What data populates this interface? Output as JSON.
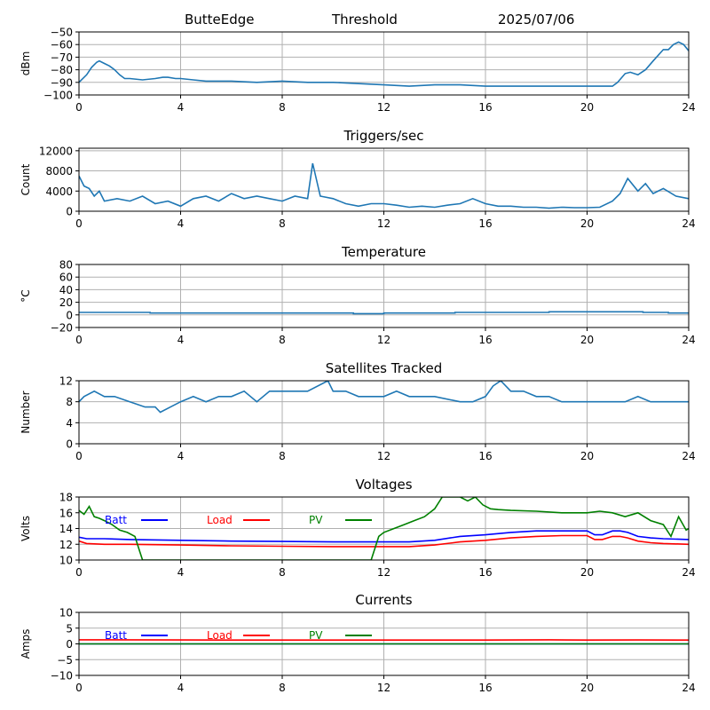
{
  "header": {
    "site": "ButteEdge",
    "label": "Threshold",
    "date": "2025/07/06"
  },
  "colors": {
    "series_default": "#1f77b4",
    "batt": "#0000ff",
    "load": "#ff0000",
    "pv": "#008000",
    "grid": "#b0b0b0",
    "axis": "#000000"
  },
  "chart_data": [
    {
      "id": "threshold",
      "type": "line",
      "title": "",
      "xlabel": "",
      "ylabel": "dBm",
      "xlim": [
        0,
        24
      ],
      "ylim": [
        -100,
        -50
      ],
      "xticks": [
        0,
        4,
        8,
        12,
        16,
        20,
        24
      ],
      "yticks": [
        -100,
        -90,
        -80,
        -70,
        -60,
        -50
      ],
      "grid": true,
      "series": [
        {
          "color": "#1f77b4",
          "x": [
            0,
            0.3,
            0.5,
            0.7,
            0.8,
            1.0,
            1.2,
            1.4,
            1.6,
            1.8,
            2.0,
            2.5,
            3.0,
            3.3,
            3.5,
            3.8,
            4.0,
            4.5,
            5.0,
            6.0,
            7.0,
            8.0,
            9.0,
            10.0,
            11.0,
            12.0,
            13.0,
            14.0,
            15.0,
            16.0,
            17.0,
            18.0,
            19.0,
            20.0,
            21.0,
            21.2,
            21.5,
            21.7,
            22.0,
            22.3,
            22.6,
            23.0,
            23.2,
            23.4,
            23.6,
            23.8,
            24.0
          ],
          "y": [
            -90,
            -84,
            -78,
            -74,
            -73,
            -75,
            -77,
            -80,
            -84,
            -87,
            -87,
            -88,
            -87,
            -86,
            -86,
            -87,
            -87,
            -88,
            -89,
            -89,
            -90,
            -89,
            -90,
            -90,
            -91,
            -92,
            -93,
            -92,
            -92,
            -93,
            -93,
            -93,
            -93,
            -93,
            -93,
            -90,
            -83,
            -82,
            -84,
            -80,
            -73,
            -64,
            -64,
            -60,
            -58,
            -60,
            -65
          ]
        }
      ]
    },
    {
      "id": "triggers",
      "type": "line",
      "title": "Triggers/sec",
      "xlabel": "",
      "ylabel": "Count",
      "xlim": [
        0,
        24
      ],
      "ylim": [
        0,
        12500
      ],
      "xticks": [
        0,
        4,
        8,
        12,
        16,
        20,
        24
      ],
      "yticks": [
        0,
        4000,
        8000,
        12000
      ],
      "grid": true,
      "series": [
        {
          "color": "#1f77b4",
          "x": [
            0,
            0.2,
            0.4,
            0.6,
            0.8,
            1.0,
            1.5,
            2.0,
            2.5,
            3.0,
            3.5,
            4.0,
            4.5,
            5.0,
            5.5,
            6.0,
            6.5,
            7.0,
            7.5,
            8.0,
            8.5,
            9.0,
            9.2,
            9.5,
            10.0,
            10.5,
            11.0,
            11.5,
            12.0,
            12.5,
            13.0,
            13.5,
            14.0,
            14.5,
            15.0,
            15.5,
            16.0,
            16.5,
            17.0,
            17.5,
            18.0,
            18.5,
            19.0,
            19.5,
            20.0,
            20.5,
            21.0,
            21.3,
            21.6,
            22.0,
            22.3,
            22.6,
            23.0,
            23.5,
            24.0
          ],
          "y": [
            7000,
            5000,
            4500,
            3000,
            4000,
            2000,
            2500,
            2000,
            3000,
            1500,
            2000,
            1000,
            2500,
            3000,
            2000,
            3500,
            2500,
            3000,
            2500,
            2000,
            3000,
            2500,
            9500,
            3000,
            2500,
            1500,
            1000,
            1500,
            1500,
            1200,
            800,
            1000,
            800,
            1200,
            1500,
            2500,
            1500,
            1000,
            1000,
            800,
            800,
            600,
            800,
            700,
            700,
            800,
            2000,
            3500,
            6500,
            4000,
            5500,
            3500,
            4500,
            3000,
            2500
          ]
        }
      ]
    },
    {
      "id": "temperature",
      "type": "line",
      "title": "Temperature",
      "xlabel": "",
      "ylabel": "°C",
      "xlim": [
        0,
        24
      ],
      "ylim": [
        -20,
        80
      ],
      "xticks": [
        0,
        4,
        8,
        12,
        16,
        20,
        24
      ],
      "yticks": [
        -20,
        0,
        20,
        40,
        60,
        80
      ],
      "grid": true,
      "series": [
        {
          "color": "#1f77b4",
          "x": [
            0,
            2.8,
            2.8,
            10.8,
            10.8,
            12.0,
            12.0,
            14.8,
            14.8,
            18.5,
            18.5,
            22.2,
            22.2,
            23.2,
            23.2,
            24
          ],
          "y": [
            4,
            4,
            3,
            3,
            2,
            2,
            3,
            3,
            4,
            4,
            5,
            5,
            4,
            4,
            3,
            3
          ]
        }
      ]
    },
    {
      "id": "satellites",
      "type": "line",
      "title": "Satellites Tracked",
      "xlabel": "",
      "ylabel": "Number",
      "xlim": [
        0,
        24
      ],
      "ylim": [
        0,
        12
      ],
      "xticks": [
        0,
        4,
        8,
        12,
        16,
        20,
        24
      ],
      "yticks": [
        0,
        4,
        8,
        12
      ],
      "grid": true,
      "series": [
        {
          "color": "#1f77b4",
          "x": [
            0,
            0.2,
            0.6,
            1.0,
            1.4,
            2.0,
            2.6,
            3.0,
            3.2,
            3.6,
            4.0,
            4.5,
            5.0,
            5.5,
            6.0,
            6.5,
            7.0,
            7.5,
            8.0,
            9.0,
            9.8,
            10.0,
            10.5,
            11.0,
            11.5,
            12.0,
            12.5,
            13.0,
            14.0,
            15.0,
            15.5,
            16.0,
            16.3,
            16.6,
            17.0,
            17.5,
            18.0,
            18.5,
            19.0,
            19.5,
            20.0,
            21.0,
            21.5,
            22.0,
            22.5,
            23.0,
            23.5,
            24.0
          ],
          "y": [
            8,
            9,
            10,
            9,
            9,
            8,
            7,
            7,
            6,
            7,
            8,
            9,
            8,
            9,
            9,
            10,
            8,
            10,
            10,
            10,
            12,
            10,
            10,
            9,
            9,
            9,
            10,
            9,
            9,
            8,
            8,
            9,
            11,
            12,
            10,
            10,
            9,
            9,
            8,
            8,
            8,
            8,
            8,
            9,
            8,
            8,
            8,
            8
          ]
        }
      ]
    },
    {
      "id": "voltages",
      "type": "line",
      "title": "Voltages",
      "xlabel": "",
      "ylabel": "Volts",
      "xlim": [
        0,
        24
      ],
      "ylim": [
        10,
        18
      ],
      "xticks": [
        0,
        4,
        8,
        12,
        16,
        20,
        24
      ],
      "yticks": [
        10,
        12,
        14,
        16,
        18
      ],
      "grid": true,
      "legend": "top-left, inline labels",
      "series": [
        {
          "name": "Batt",
          "color": "#0000ff",
          "x": [
            0,
            0.3,
            1,
            2,
            4,
            6,
            8,
            10,
            12,
            13,
            14,
            15,
            16,
            17,
            18,
            19,
            20,
            20.3,
            20.6,
            21,
            21.3,
            21.6,
            22,
            22.5,
            23,
            24
          ],
          "y": [
            12.9,
            12.7,
            12.7,
            12.6,
            12.5,
            12.4,
            12.35,
            12.3,
            12.3,
            12.3,
            12.5,
            13.0,
            13.2,
            13.5,
            13.7,
            13.7,
            13.7,
            13.2,
            13.2,
            13.7,
            13.7,
            13.5,
            13.0,
            12.8,
            12.7,
            12.6
          ]
        },
        {
          "name": "Load",
          "color": "#ff0000",
          "x": [
            0,
            0.3,
            1,
            2,
            4,
            6,
            8,
            10,
            12,
            13,
            14,
            15,
            16,
            17,
            18,
            19,
            20,
            20.3,
            20.6,
            21,
            21.3,
            21.6,
            22,
            22.5,
            23,
            24
          ],
          "y": [
            12.4,
            12.1,
            12.0,
            12.0,
            11.9,
            11.8,
            11.75,
            11.7,
            11.7,
            11.7,
            11.9,
            12.3,
            12.5,
            12.8,
            13.0,
            13.1,
            13.1,
            12.6,
            12.6,
            13.0,
            13.0,
            12.8,
            12.4,
            12.2,
            12.1,
            12.0
          ]
        },
        {
          "name": "PV",
          "color": "#008000",
          "x": [
            0,
            0.2,
            0.4,
            0.6,
            0.8,
            1.0,
            1.3,
            1.6,
            1.9,
            2.2,
            2.4,
            2.5,
            11.5,
            11.8,
            12.0,
            12.4,
            12.8,
            13.2,
            13.6,
            14.0,
            14.3,
            15.0,
            15.3,
            15.6,
            15.9,
            16.2,
            16.5,
            17.0,
            18.0,
            19.0,
            20.0,
            20.5,
            21.0,
            21.5,
            22.0,
            22.5,
            23.0,
            23.3,
            23.6,
            23.9,
            24.0
          ],
          "y": [
            16.3,
            15.8,
            16.8,
            15.5,
            15.3,
            15.0,
            14.5,
            13.8,
            13.5,
            13.0,
            11.0,
            10.0,
            10.0,
            13.0,
            13.5,
            14.0,
            14.5,
            15.0,
            15.5,
            16.5,
            18.0,
            18.0,
            17.5,
            18.0,
            17.0,
            16.5,
            16.4,
            16.3,
            16.2,
            16.0,
            16.0,
            16.2,
            16.0,
            15.5,
            16.0,
            15.0,
            14.5,
            13.0,
            15.5,
            13.8,
            14.0
          ]
        }
      ]
    },
    {
      "id": "currents",
      "type": "line",
      "title": "Currents",
      "xlabel": "",
      "ylabel": "Amps",
      "xlim": [
        0,
        24
      ],
      "ylim": [
        -10,
        10
      ],
      "xticks": [
        0,
        4,
        8,
        12,
        16,
        20,
        24
      ],
      "yticks": [
        -10,
        -5,
        0,
        5,
        10
      ],
      "grid": true,
      "legend": "top-left, inline labels",
      "series": [
        {
          "name": "Batt",
          "color": "#0000ff",
          "x": [
            0,
            24
          ],
          "y": [
            0,
            0
          ]
        },
        {
          "name": "Load",
          "color": "#ff0000",
          "x": [
            0,
            4,
            8,
            12,
            16,
            18.5,
            20,
            22,
            24
          ],
          "y": [
            1.3,
            1.25,
            1.2,
            1.2,
            1.2,
            1.3,
            1.2,
            1.25,
            1.2
          ]
        },
        {
          "name": "PV",
          "color": "#008000",
          "x": [
            0,
            24
          ],
          "y": [
            0,
            0
          ]
        }
      ]
    }
  ]
}
